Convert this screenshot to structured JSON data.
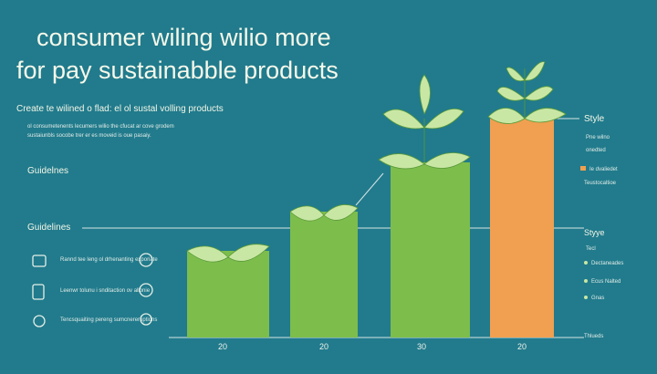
{
  "header": {
    "title_lines": [
      "consumer wiling wilio more",
      "for pay sustainabble products"
    ],
    "subtitle": "Create te wilined o flad: el ol sustal volling products",
    "description_lines": [
      "ol consumetenents lecumers wilio the cfucat ar cove grodem",
      "sustaiunbls socobe trer er es moveid is oue pasaiy."
    ]
  },
  "left": {
    "heading_1": "Guidelnes",
    "heading_2": "Guidelines",
    "items": [
      "Rannd tee leng ol drhenanting exporiate",
      "Leenwr tolunu i snditaction ov allonie",
      "Tencsquaiting pereng sumcnereruptions"
    ]
  },
  "bars": {
    "labels": [
      "20",
      "20",
      "30",
      "20"
    ]
  },
  "right": {
    "style_heading": "Style",
    "style_lines": [
      "Pne wilno",
      "onedted"
    ],
    "style_legend": "Ie dvaliedet",
    "style_note": "Teustocaltioe",
    "legend_heading": "Styye",
    "legend_sub": "Tecl",
    "legend_items": [
      "Dectaneades",
      "Ecus Nalted",
      "Gnas"
    ],
    "footer": "Thlueds"
  }
}
